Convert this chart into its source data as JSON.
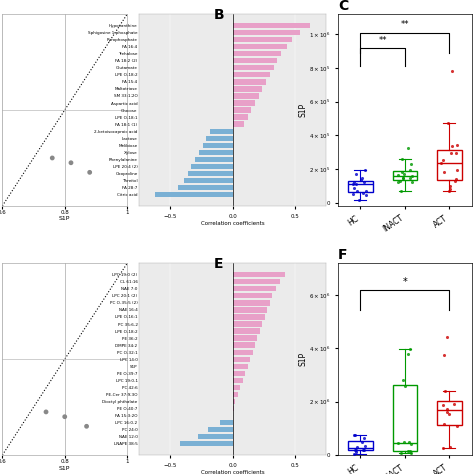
{
  "panel_B_labels": [
    "Hypoxanthine",
    "Sphigosine 1-phosphate",
    "Pyrophosphate",
    "FA 16:4",
    "Trehalose",
    "FA 18:2 (2)",
    "Glutamate",
    "LPE O-18:2",
    "FA 15:4",
    "Maltotriose",
    "SM 33:1;2O",
    "Aspartic acid",
    "Glucose",
    "LPE O-18:1",
    "FA 18:1 (1)",
    "2-ketoisocaproic acid",
    "Lactose",
    "Melibiose",
    "Xylose",
    "Phenylalanine",
    "LPE 20:4 (2)",
    "Oxoproline",
    "Threitol",
    "FA 28:7",
    "Citric acid"
  ],
  "panel_B_values": [
    0.62,
    0.54,
    0.48,
    0.44,
    0.39,
    0.36,
    0.33,
    0.3,
    0.27,
    0.24,
    0.21,
    0.18,
    0.15,
    0.12,
    0.09,
    -0.18,
    -0.21,
    -0.24,
    -0.27,
    -0.3,
    -0.33,
    -0.36,
    -0.39,
    -0.44,
    -0.62
  ],
  "panel_E_labels": [
    "LPC 19:0 (2)",
    "CL 61:16",
    "NAE 7:0",
    "LPC 20:1 (2)",
    "PC O-35:5 (2)",
    "NAE 16:4",
    "LPE O-16:1",
    "PC 35:6-2",
    "LPE O-18:2",
    "PE 36:2",
    "DMPE 34:2",
    "PC O-32:1",
    "LPC 14:0",
    "S1P",
    "PE O-39:7",
    "LPC 19:0-1",
    "PC 42:6",
    "PE-Cer 37:9;3O",
    "Dioctyl phthalate",
    "PE O-40:7",
    "FA 15:3:2O",
    "LPC 16:0-2",
    "PC 24:0",
    "NAE 12:0",
    "LNAPE 38:5"
  ],
  "panel_E_values": [
    0.42,
    0.38,
    0.35,
    0.32,
    0.3,
    0.28,
    0.26,
    0.24,
    0.22,
    0.2,
    0.18,
    0.16,
    0.14,
    0.12,
    0.1,
    0.08,
    0.06,
    0.04,
    0.02,
    0.01,
    0.005,
    -0.1,
    -0.2,
    -0.28,
    -0.42
  ],
  "pink_color": "#e8a0c8",
  "blue_color": "#7ab0d4",
  "panel_B_label": "B",
  "panel_E_label": "E",
  "panel_C_label": "C",
  "panel_F_label": "F",
  "xlabel": "Correlation coefficients",
  "box_colors": [
    "#0000cc",
    "#009900",
    "#cc0000"
  ],
  "box_labels": [
    "HC",
    "INACT",
    "ACT"
  ],
  "bg_color": "#ebebeb"
}
